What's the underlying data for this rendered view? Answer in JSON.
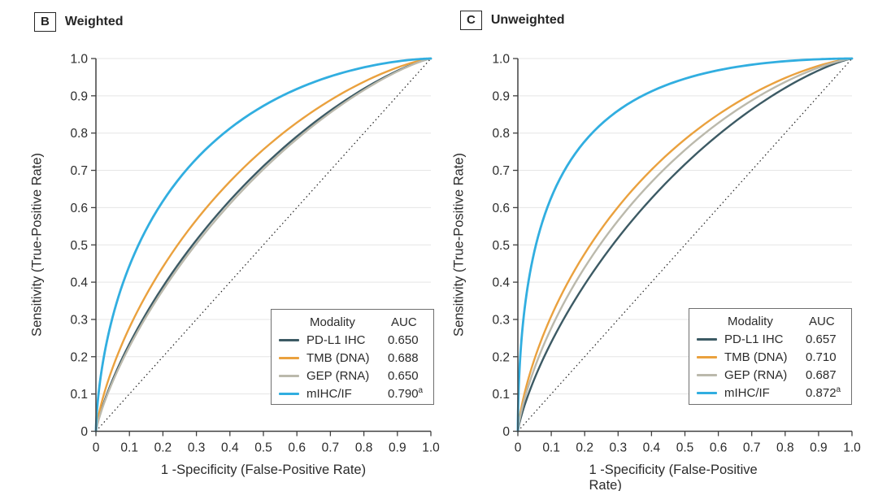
{
  "figure": {
    "panels": [
      {
        "label": "B",
        "title": "Weighted",
        "legend": [
          {
            "modality": "PD-L1 IHC",
            "auc": "0.650",
            "superscript": "",
            "color": "#3C5A64"
          },
          {
            "modality": "TMB (DNA)",
            "auc": "0.688",
            "superscript": "",
            "color": "#EAA13E"
          },
          {
            "modality": "GEP (RNA)",
            "auc": "0.650",
            "superscript": "",
            "color": "#BBB9AC"
          },
          {
            "modality": "mIHC/IF",
            "auc": "0.790",
            "superscript": "a",
            "color": "#31AEE0"
          }
        ]
      },
      {
        "label": "C",
        "title": "Unweighted",
        "legend": [
          {
            "modality": "PD-L1 IHC",
            "auc": "0.657",
            "superscript": "",
            "color": "#3C5A64"
          },
          {
            "modality": "TMB (DNA)",
            "auc": "0.710",
            "superscript": "",
            "color": "#EAA13E"
          },
          {
            "modality": "GEP (RNA)",
            "auc": "0.687",
            "superscript": "",
            "color": "#BBB9AC"
          },
          {
            "modality": "mIHC/IF",
            "auc": "0.872",
            "superscript": "a",
            "color": "#31AEE0"
          }
        ]
      }
    ],
    "legend_header": {
      "modality": "Modality",
      "auc": "AUC"
    },
    "axes": {
      "x_label": "1 -Specificity (False-Positive Rate)",
      "y_label": "Sensitivity (True-Positive Rate)",
      "x_ticks": [
        "0",
        "0.1",
        "0.2",
        "0.3",
        "0.4",
        "0.5",
        "0.6",
        "0.7",
        "0.8",
        "0.9",
        "1.0"
      ],
      "y_ticks": [
        "0",
        "0.1",
        "0.2",
        "0.3",
        "0.4",
        "0.5",
        "0.6",
        "0.7",
        "0.8",
        "0.9",
        "1.0"
      ]
    },
    "colors": {
      "grid": "#E5E5E5",
      "spine": "#404040",
      "tick_text": "#2B2B2B",
      "diagonal": "#1F1F1F"
    }
  },
  "chart_data": [
    {
      "type": "line",
      "subtype": "ROC curve",
      "panel_label": "B",
      "title": "Weighted",
      "xlabel": "1 -Specificity (False-Positive Rate)",
      "ylabel": "Sensitivity (True-Positive Rate)",
      "xlim": [
        0,
        1
      ],
      "ylim": [
        0,
        1
      ],
      "x_tick_step": 0.1,
      "y_tick_step": 0.1,
      "grid": "horizontal only",
      "legend_position": "lower right",
      "legend_columns": [
        "Modality",
        "AUC"
      ],
      "reference_line": "dotted diagonal chance line from (0,0) to (1,1)",
      "series": [
        {
          "name": "PD-L1 IHC",
          "auc": 0.65,
          "color": "#3C5A64"
        },
        {
          "name": "TMB (DNA)",
          "auc": 0.688,
          "color": "#EAA13E"
        },
        {
          "name": "GEP (RNA)",
          "auc": 0.65,
          "color": "#BBB9AC"
        },
        {
          "name": "mIHC/IF",
          "auc": 0.79,
          "footnote_marker": "a",
          "color": "#31AEE0"
        }
      ]
    },
    {
      "type": "line",
      "subtype": "ROC curve",
      "panel_label": "C",
      "title": "Unweighted",
      "xlabel": "1 -Specificity (False-Positive Rate)",
      "ylabel": "Sensitivity (True-Positive Rate)",
      "xlim": [
        0,
        1
      ],
      "ylim": [
        0,
        1
      ],
      "x_tick_step": 0.1,
      "y_tick_step": 0.1,
      "grid": "horizontal only",
      "legend_position": "lower right",
      "legend_columns": [
        "Modality",
        "AUC"
      ],
      "reference_line": "dotted diagonal chance line from (0,0) to (1,1)",
      "series": [
        {
          "name": "PD-L1 IHC",
          "auc": 0.657,
          "color": "#3C5A64"
        },
        {
          "name": "TMB (DNA)",
          "auc": 0.71,
          "color": "#EAA13E"
        },
        {
          "name": "GEP (RNA)",
          "auc": 0.687,
          "color": "#BBB9AC"
        },
        {
          "name": "mIHC/IF",
          "auc": 0.872,
          "footnote_marker": "a",
          "color": "#31AEE0"
        }
      ]
    }
  ]
}
